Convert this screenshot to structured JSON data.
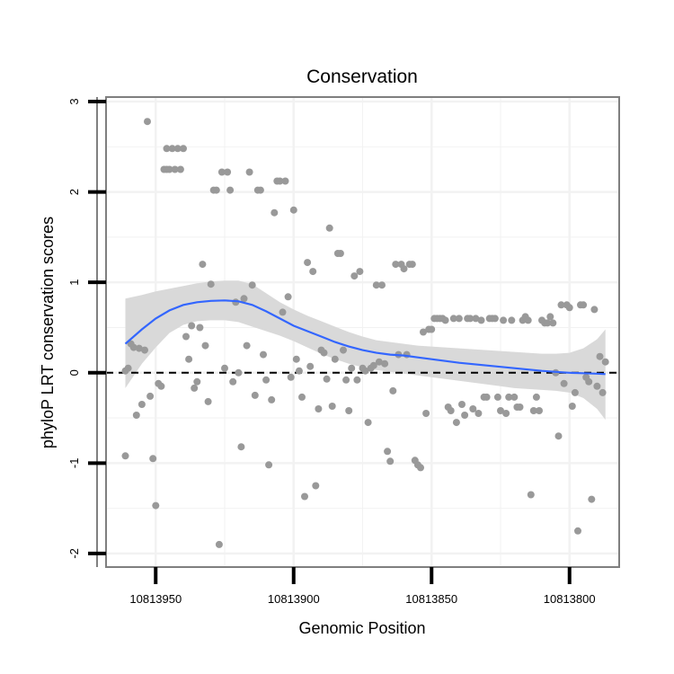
{
  "chart_data": {
    "type": "scatter",
    "title": "Conservation",
    "xlabel": "Genomic Position",
    "ylabel": "phyloP LRT conservation scores",
    "xlim": [
      10813968,
      10813782
    ],
    "ylim": [
      -2.15,
      3.05
    ],
    "x_reversed": true,
    "x_ticks": [
      10813950,
      10813900,
      10813850,
      10813800
    ],
    "x_tick_labels": [
      "10813950",
      "10813900",
      "10813850",
      "10813800"
    ],
    "y_ticks": [
      -2,
      -1,
      0,
      1,
      2,
      3
    ],
    "y_tick_labels": [
      "-2",
      "-1",
      "0",
      "1",
      "2",
      "3"
    ],
    "grid": true,
    "colors": {
      "points": "#999999",
      "smooth": "#3366FF",
      "ribbon": "#D9D9D9",
      "frame": "#7F7F7F",
      "grid": "#F2F2F2",
      "reference": "#000000"
    },
    "reference_line": {
      "y": 0,
      "style": "dashed"
    },
    "points": [
      [
        10813961,
        0.02
      ],
      [
        10813961,
        -0.92
      ],
      [
        10813960,
        0.05
      ],
      [
        10813959,
        0.32
      ],
      [
        10813958,
        0.28
      ],
      [
        10813957,
        -0.47
      ],
      [
        10813956,
        0.27
      ],
      [
        10813955,
        -0.35
      ],
      [
        10813954,
        0.25
      ],
      [
        10813953,
        2.78
      ],
      [
        10813952,
        -0.26
      ],
      [
        10813951,
        -0.95
      ],
      [
        10813950,
        -1.47
      ],
      [
        10813949,
        -0.12
      ],
      [
        10813948,
        -0.15
      ],
      [
        10813947,
        2.25
      ],
      [
        10813946,
        2.25
      ],
      [
        10813946,
        2.48
      ],
      [
        10813945,
        2.25
      ],
      [
        10813944,
        2.48
      ],
      [
        10813943,
        2.25
      ],
      [
        10813942,
        2.48
      ],
      [
        10813941,
        2.25
      ],
      [
        10813940,
        2.48
      ],
      [
        10813939,
        0.4
      ],
      [
        10813938,
        0.15
      ],
      [
        10813937,
        0.52
      ],
      [
        10813936,
        -0.17
      ],
      [
        10813935,
        -0.1
      ],
      [
        10813934,
        0.5
      ],
      [
        10813933,
        1.2
      ],
      [
        10813932,
        0.3
      ],
      [
        10813931,
        -0.32
      ],
      [
        10813930,
        0.98
      ],
      [
        10813929,
        2.02
      ],
      [
        10813928,
        2.02
      ],
      [
        10813927,
        -1.9
      ],
      [
        10813926,
        2.22
      ],
      [
        10813925,
        0.05
      ],
      [
        10813924,
        2.22
      ],
      [
        10813923,
        2.02
      ],
      [
        10813922,
        -0.1
      ],
      [
        10813921,
        0.78
      ],
      [
        10813920,
        0.0
      ],
      [
        10813919,
        -0.82
      ],
      [
        10813918,
        0.82
      ],
      [
        10813917,
        0.3
      ],
      [
        10813916,
        2.22
      ],
      [
        10813915,
        0.97
      ],
      [
        10813914,
        -0.25
      ],
      [
        10813913,
        2.02
      ],
      [
        10813912,
        2.02
      ],
      [
        10813911,
        0.2
      ],
      [
        10813910,
        -0.08
      ],
      [
        10813909,
        -1.02
      ],
      [
        10813908,
        -0.3
      ],
      [
        10813907,
        1.77
      ],
      [
        10813906,
        2.12
      ],
      [
        10813905,
        2.12
      ],
      [
        10813904,
        0.67
      ],
      [
        10813903,
        2.12
      ],
      [
        10813902,
        0.84
      ],
      [
        10813901,
        -0.05
      ],
      [
        10813900,
        1.8
      ],
      [
        10813899,
        0.15
      ],
      [
        10813898,
        0.02
      ],
      [
        10813897,
        -0.27
      ],
      [
        10813896,
        -1.37
      ],
      [
        10813895,
        1.22
      ],
      [
        10813894,
        0.07
      ],
      [
        10813893,
        1.12
      ],
      [
        10813892,
        -1.25
      ],
      [
        10813891,
        -0.4
      ],
      [
        10813890,
        0.25
      ],
      [
        10813889,
        0.22
      ],
      [
        10813888,
        -0.07
      ],
      [
        10813887,
        1.6
      ],
      [
        10813886,
        -0.37
      ],
      [
        10813885,
        0.15
      ],
      [
        10813884,
        1.32
      ],
      [
        10813883,
        1.32
      ],
      [
        10813882,
        0.25
      ],
      [
        10813881,
        -0.08
      ],
      [
        10813880,
        -0.42
      ],
      [
        10813879,
        0.05
      ],
      [
        10813878,
        1.07
      ],
      [
        10813877,
        -0.08
      ],
      [
        10813876,
        1.12
      ],
      [
        10813875,
        0.05
      ],
      [
        10813874,
        0.02
      ],
      [
        10813873,
        -0.55
      ],
      [
        10813872,
        0.05
      ],
      [
        10813871,
        0.08
      ],
      [
        10813870,
        0.97
      ],
      [
        10813869,
        0.12
      ],
      [
        10813868,
        0.97
      ],
      [
        10813867,
        0.1
      ],
      [
        10813866,
        -0.87
      ],
      [
        10813865,
        -0.98
      ],
      [
        10813864,
        -0.2
      ],
      [
        10813863,
        1.2
      ],
      [
        10813862,
        0.2
      ],
      [
        10813861,
        1.2
      ],
      [
        10813860,
        1.15
      ],
      [
        10813859,
        0.2
      ],
      [
        10813858,
        1.2
      ],
      [
        10813857,
        1.2
      ],
      [
        10813856,
        -0.97
      ],
      [
        10813855,
        -1.02
      ],
      [
        10813854,
        -1.05
      ],
      [
        10813853,
        0.45
      ],
      [
        10813852,
        -0.45
      ],
      [
        10813851,
        0.48
      ],
      [
        10813850,
        0.48
      ],
      [
        10813849,
        0.6
      ],
      [
        10813848,
        0.6
      ],
      [
        10813847,
        0.6
      ],
      [
        10813846,
        0.6
      ],
      [
        10813845,
        0.58
      ],
      [
        10813844,
        -0.38
      ],
      [
        10813843,
        -0.42
      ],
      [
        10813842,
        0.6
      ],
      [
        10813841,
        -0.55
      ],
      [
        10813840,
        0.6
      ],
      [
        10813839,
        -0.35
      ],
      [
        10813838,
        -0.47
      ],
      [
        10813837,
        0.6
      ],
      [
        10813836,
        0.6
      ],
      [
        10813835,
        -0.4
      ],
      [
        10813834,
        0.6
      ],
      [
        10813833,
        -0.45
      ],
      [
        10813832,
        0.58
      ],
      [
        10813831,
        -0.27
      ],
      [
        10813830,
        -0.27
      ],
      [
        10813829,
        0.6
      ],
      [
        10813828,
        0.6
      ],
      [
        10813827,
        0.6
      ],
      [
        10813826,
        -0.27
      ],
      [
        10813825,
        -0.42
      ],
      [
        10813824,
        0.58
      ],
      [
        10813823,
        -0.45
      ],
      [
        10813822,
        -0.27
      ],
      [
        10813821,
        0.58
      ],
      [
        10813820,
        -0.27
      ],
      [
        10813819,
        -0.38
      ],
      [
        10813818,
        -0.38
      ],
      [
        10813817,
        0.58
      ],
      [
        10813816,
        0.62
      ],
      [
        10813815,
        0.58
      ],
      [
        10813814,
        -1.35
      ],
      [
        10813813,
        -0.42
      ],
      [
        10813812,
        -0.27
      ],
      [
        10813811,
        -0.42
      ],
      [
        10813810,
        0.58
      ],
      [
        10813809,
        0.55
      ],
      [
        10813808,
        0.55
      ],
      [
        10813807,
        0.62
      ],
      [
        10813806,
        0.55
      ],
      [
        10813805,
        0.0
      ],
      [
        10813804,
        -0.7
      ],
      [
        10813803,
        0.75
      ],
      [
        10813802,
        -0.12
      ],
      [
        10813801,
        0.75
      ],
      [
        10813800,
        0.72
      ],
      [
        10813799,
        -0.37
      ],
      [
        10813798,
        -0.22
      ],
      [
        10813797,
        -1.75
      ],
      [
        10813796,
        0.75
      ],
      [
        10813795,
        0.75
      ],
      [
        10813794,
        -0.05
      ],
      [
        10813793,
        -0.1
      ],
      [
        10813792,
        -1.4
      ],
      [
        10813791,
        0.7
      ],
      [
        10813790,
        -0.15
      ],
      [
        10813789,
        0.18
      ],
      [
        10813788,
        -0.22
      ],
      [
        10813787,
        0.12
      ]
    ],
    "smooth": [
      [
        10813961,
        0.32
      ],
      [
        10813955,
        0.48
      ],
      [
        10813950,
        0.6
      ],
      [
        10813945,
        0.69
      ],
      [
        10813940,
        0.75
      ],
      [
        10813935,
        0.78
      ],
      [
        10813930,
        0.795
      ],
      [
        10813925,
        0.8
      ],
      [
        10813920,
        0.79
      ],
      [
        10813915,
        0.75
      ],
      [
        10813910,
        0.68
      ],
      [
        10813905,
        0.6
      ],
      [
        10813900,
        0.52
      ],
      [
        10813895,
        0.46
      ],
      [
        10813890,
        0.4
      ],
      [
        10813885,
        0.34
      ],
      [
        10813880,
        0.29
      ],
      [
        10813875,
        0.25
      ],
      [
        10813870,
        0.22
      ],
      [
        10813865,
        0.2
      ],
      [
        10813860,
        0.19
      ],
      [
        10813855,
        0.17
      ],
      [
        10813850,
        0.15
      ],
      [
        10813845,
        0.13
      ],
      [
        10813840,
        0.11
      ],
      [
        10813835,
        0.095
      ],
      [
        10813830,
        0.08
      ],
      [
        10813825,
        0.065
      ],
      [
        10813820,
        0.05
      ],
      [
        10813815,
        0.035
      ],
      [
        10813810,
        0.02
      ],
      [
        10813805,
        0.01
      ],
      [
        10813800,
        0.0
      ],
      [
        10813795,
        -0.005
      ],
      [
        10813790,
        -0.01
      ],
      [
        10813787,
        -0.015
      ]
    ],
    "ribbon_upper": [
      [
        10813961,
        0.82
      ],
      [
        10813955,
        0.86
      ],
      [
        10813950,
        0.9
      ],
      [
        10813945,
        0.93
      ],
      [
        10813940,
        0.96
      ],
      [
        10813935,
        0.99
      ],
      [
        10813930,
        1.01
      ],
      [
        10813925,
        1.02
      ],
      [
        10813920,
        1.02
      ],
      [
        10813915,
        0.98
      ],
      [
        10813910,
        0.88
      ],
      [
        10813905,
        0.78
      ],
      [
        10813900,
        0.7
      ],
      [
        10813895,
        0.63
      ],
      [
        10813890,
        0.57
      ],
      [
        10813885,
        0.51
      ],
      [
        10813880,
        0.45
      ],
      [
        10813875,
        0.4
      ],
      [
        10813870,
        0.36
      ],
      [
        10813865,
        0.34
      ],
      [
        10813860,
        0.32
      ],
      [
        10813855,
        0.3
      ],
      [
        10813850,
        0.29
      ],
      [
        10813845,
        0.28
      ],
      [
        10813840,
        0.27
      ],
      [
        10813835,
        0.26
      ],
      [
        10813830,
        0.25
      ],
      [
        10813825,
        0.24
      ],
      [
        10813820,
        0.23
      ],
      [
        10813815,
        0.22
      ],
      [
        10813810,
        0.21
      ],
      [
        10813805,
        0.21
      ],
      [
        10813800,
        0.22
      ],
      [
        10813795,
        0.27
      ],
      [
        10813790,
        0.37
      ],
      [
        10813787,
        0.48
      ]
    ],
    "ribbon_lower": [
      [
        10813961,
        -0.17
      ],
      [
        10813955,
        0.1
      ],
      [
        10813950,
        0.28
      ],
      [
        10813945,
        0.44
      ],
      [
        10813940,
        0.53
      ],
      [
        10813935,
        0.57
      ],
      [
        10813930,
        0.58
      ],
      [
        10813925,
        0.58
      ],
      [
        10813920,
        0.56
      ],
      [
        10813915,
        0.51
      ],
      [
        10813910,
        0.46
      ],
      [
        10813905,
        0.41
      ],
      [
        10813900,
        0.35
      ],
      [
        10813895,
        0.28
      ],
      [
        10813890,
        0.21
      ],
      [
        10813885,
        0.15
      ],
      [
        10813880,
        0.1
      ],
      [
        10813875,
        0.06
      ],
      [
        10813870,
        0.03
      ],
      [
        10813865,
        0.01
      ],
      [
        10813860,
        -0.01
      ],
      [
        10813855,
        -0.03
      ],
      [
        10813850,
        -0.05
      ],
      [
        10813845,
        -0.07
      ],
      [
        10813840,
        -0.09
      ],
      [
        10813835,
        -0.11
      ],
      [
        10813830,
        -0.13
      ],
      [
        10813825,
        -0.15
      ],
      [
        10813820,
        -0.17
      ],
      [
        10813815,
        -0.18
      ],
      [
        10813810,
        -0.19
      ],
      [
        10813805,
        -0.2
      ],
      [
        10813800,
        -0.22
      ],
      [
        10813795,
        -0.28
      ],
      [
        10813790,
        -0.4
      ],
      [
        10813787,
        -0.52
      ]
    ]
  }
}
